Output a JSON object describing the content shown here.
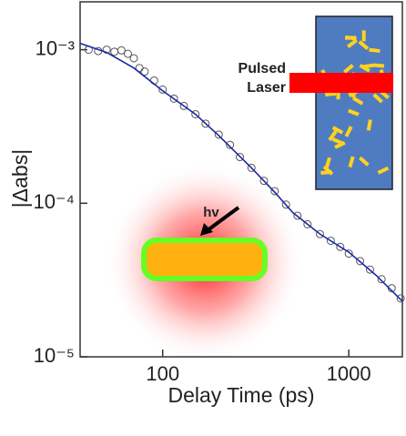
{
  "chart_data": {
    "type": "scatter",
    "x_label": "Delay Time (ps)",
    "y_label": "|Δabs|",
    "log_x": true,
    "log_y": true,
    "xlim": [
      36,
      1940
    ],
    "ylim": [
      1e-05,
      0.00205
    ],
    "xticks": [
      100,
      1000
    ],
    "yticks": [
      {
        "value": 1e-05,
        "label": "10⁻⁵"
      },
      {
        "value": 0.0001,
        "label": "10⁻⁴"
      },
      {
        "value": 0.001,
        "label": "10⁻³"
      }
    ],
    "series": [
      {
        "mode": "markers",
        "color": "#555555",
        "x": [
          40,
          45,
          50,
          55,
          60,
          65,
          70,
          75,
          80,
          90,
          100,
          115,
          130,
          150,
          170,
          200,
          230,
          260,
          300,
          350,
          400,
          460,
          530,
          600,
          700,
          800,
          900,
          1000,
          1150,
          1300,
          1500,
          1700,
          1900
        ],
        "values": [
          0.001,
          0.00098,
          0.001,
          0.00097,
          0.00099,
          0.00094,
          0.00088,
          0.00076,
          0.00072,
          0.00063,
          0.00055,
          0.00048,
          0.00043,
          0.00038,
          0.00033,
          0.00028,
          0.00024,
          0.0002,
          0.00017,
          0.00014,
          0.00012,
          9.8e-05,
          8.3e-05,
          7.3e-05,
          6.3e-05,
          5.7e-05,
          5.2e-05,
          4.7e-05,
          4.2e-05,
          3.7e-05,
          3.2e-05,
          2.8e-05,
          2.4e-05
        ]
      },
      {
        "mode": "line",
        "color": "#1a2aa0",
        "x": [
          36,
          50,
          70,
          100,
          150,
          200,
          300,
          400,
          500,
          700,
          1000,
          1400,
          1940
        ],
        "values": [
          0.0011,
          0.00096,
          0.00076,
          0.00054,
          0.00038,
          0.000276,
          0.00017,
          0.000118,
          8.7e-05,
          6.3e-05,
          4.8e-05,
          3.4e-05,
          2.3e-05
        ]
      }
    ],
    "annotations": [
      "hv",
      "Pulsed",
      "Laser"
    ]
  }
}
